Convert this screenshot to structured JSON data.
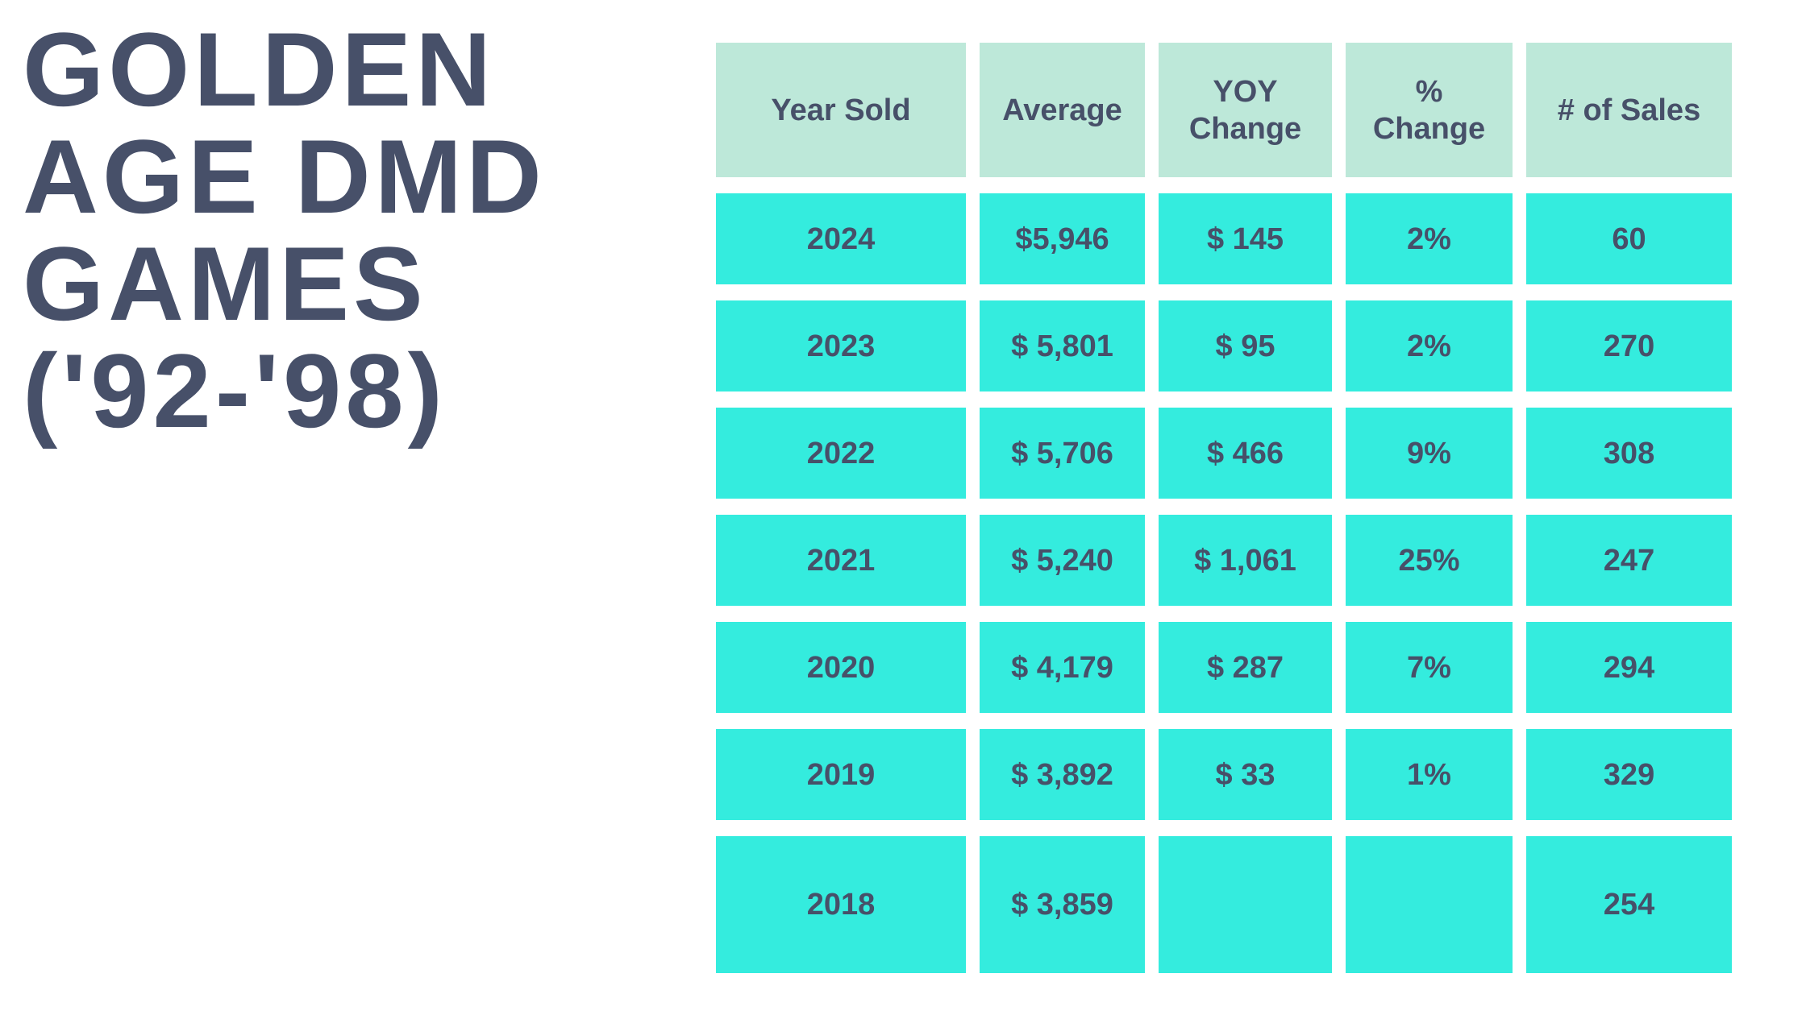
{
  "title": {
    "lines": [
      "GOLDEN",
      "AGE DMD",
      "GAMES",
      "('92-'98)"
    ],
    "full_text": "GOLDEN AGE DMD GAMES ('92-'98)"
  },
  "colors": {
    "page_bg": "#ffffff",
    "title_text": "#475069",
    "header_bg": "#bde8d9",
    "cell_bg": "#34ecde",
    "cell_text": "#475069"
  },
  "chart_data": {
    "type": "table",
    "title": "GOLDEN AGE DMD GAMES ('92-'98)",
    "columns": [
      "Year Sold",
      "Average",
      "YOY Change",
      "% Change",
      "# of Sales"
    ],
    "header_display": [
      "Year Sold",
      "Average",
      "YOY\nChange",
      "%\nChange",
      "# of Sales"
    ],
    "rows": [
      [
        "2024",
        "$5,946",
        "$ 145",
        "2%",
        "60"
      ],
      [
        "2023",
        "$ 5,801",
        "$ 95",
        "2%",
        "270"
      ],
      [
        "2022",
        "$ 5,706",
        "$ 466",
        "9%",
        "308"
      ],
      [
        "2021",
        "$ 5,240",
        "$ 1,061",
        "25%",
        "247"
      ],
      [
        "2020",
        "$ 4,179",
        "$ 287",
        "7%",
        "294"
      ],
      [
        "2019",
        "$ 3,892",
        "$ 33",
        "1%",
        "329"
      ],
      [
        "2018",
        "$ 3,859",
        "",
        "",
        "254"
      ]
    ],
    "notes": "Empty YOY Change and % Change cells in the 2018 row are rendered as blank turquoise cells; 2018 row is taller than the other data rows."
  }
}
